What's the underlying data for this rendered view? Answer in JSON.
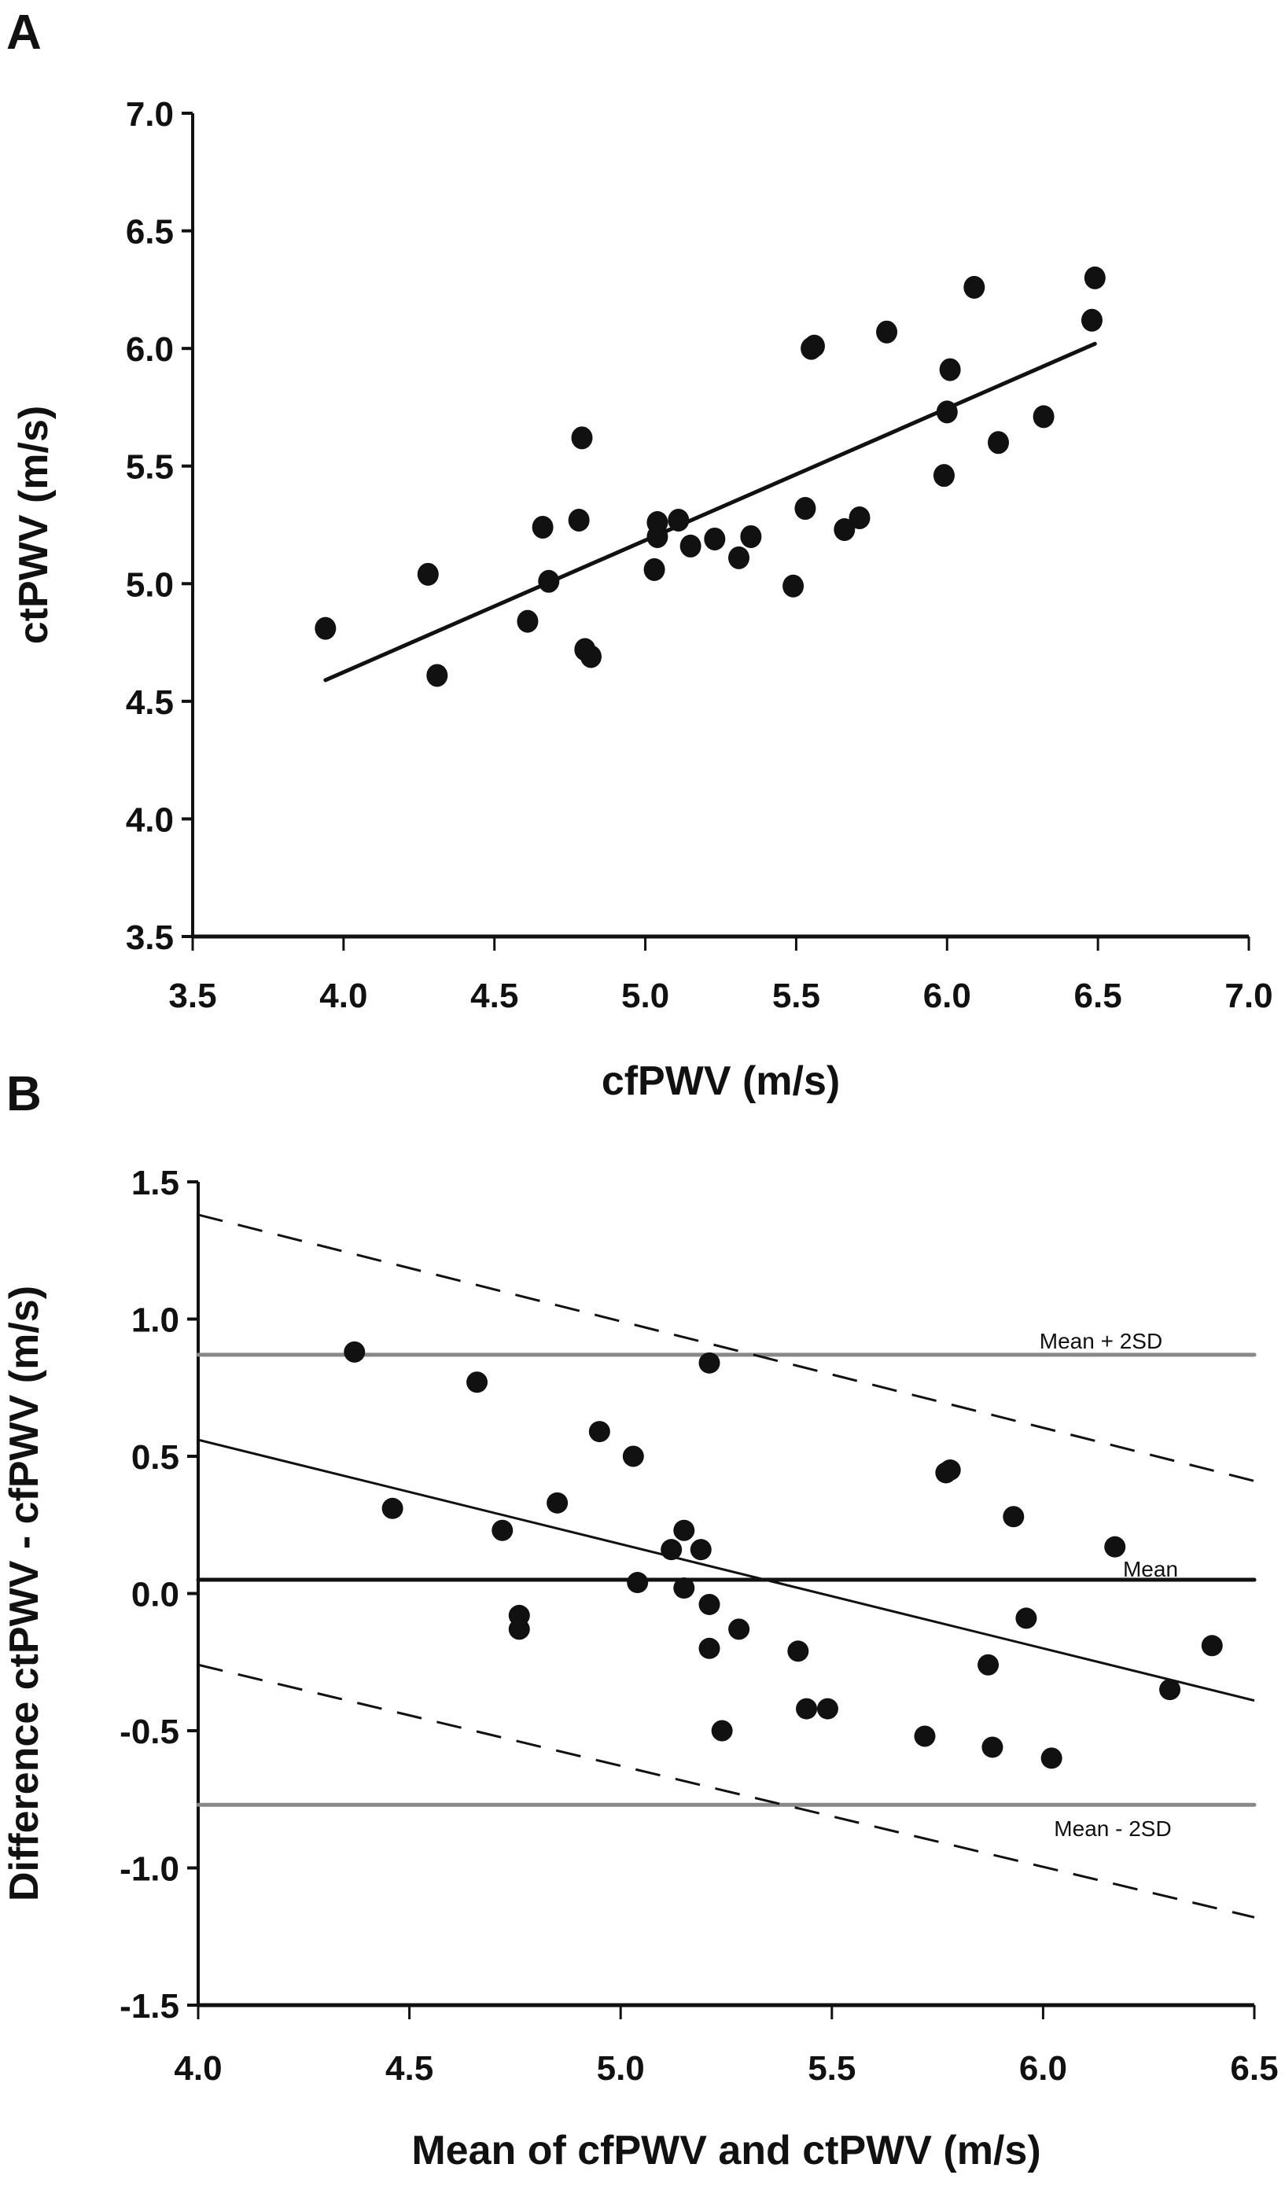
{
  "chart_data": [
    {
      "panel": "A",
      "type": "scatter",
      "title": "",
      "xlabel": "cfPWV (m/s)",
      "ylabel": "ctPWV (m/s)",
      "xlim": [
        3.5,
        7.0
      ],
      "ylim": [
        3.5,
        7.0
      ],
      "xticks": [
        "3.5",
        "4.0",
        "4.5",
        "5.0",
        "5.5",
        "6.0",
        "6.5",
        "7.0"
      ],
      "yticks": [
        "3.5",
        "4.0",
        "4.5",
        "5.0",
        "5.5",
        "6.0",
        "6.5",
        "7.0"
      ],
      "grid": false,
      "points": [
        [
          3.94,
          4.81
        ],
        [
          4.28,
          5.04
        ],
        [
          4.31,
          4.61
        ],
        [
          4.61,
          4.84
        ],
        [
          4.66,
          5.24
        ],
        [
          4.68,
          5.01
        ],
        [
          4.78,
          5.27
        ],
        [
          4.79,
          5.62
        ],
        [
          4.8,
          4.72
        ],
        [
          4.82,
          4.69
        ],
        [
          5.03,
          5.06
        ],
        [
          5.04,
          5.26
        ],
        [
          5.04,
          5.2
        ],
        [
          5.11,
          5.27
        ],
        [
          5.15,
          5.16
        ],
        [
          5.23,
          5.19
        ],
        [
          5.31,
          5.11
        ],
        [
          5.35,
          5.2
        ],
        [
          5.49,
          4.99
        ],
        [
          5.53,
          5.32
        ],
        [
          5.55,
          6.0
        ],
        [
          5.56,
          6.01
        ],
        [
          5.66,
          5.23
        ],
        [
          5.71,
          5.28
        ],
        [
          5.8,
          6.07
        ],
        [
          5.99,
          5.46
        ],
        [
          6.0,
          5.73
        ],
        [
          6.01,
          5.91
        ],
        [
          6.09,
          6.26
        ],
        [
          6.17,
          5.6
        ],
        [
          6.32,
          5.71
        ],
        [
          6.48,
          6.12
        ],
        [
          6.49,
          6.3
        ]
      ],
      "regression_line": {
        "x": [
          3.94,
          6.49
        ],
        "y": [
          4.59,
          6.02
        ]
      }
    },
    {
      "panel": "B",
      "type": "scatter",
      "title": "",
      "xlabel": "Mean of cfPWV and ctPWV (m/s)",
      "ylabel": "Difference ctPWV - cfPWV (m/s)",
      "xlim": [
        4.0,
        6.5
      ],
      "ylim": [
        -1.5,
        1.5
      ],
      "xticks": [
        "4.0",
        "4.5",
        "5.0",
        "5.5",
        "6.0",
        "6.5"
      ],
      "yticks": [
        "-1.5",
        "-1.0",
        "-0.5",
        "0.0",
        "0.5",
        "1.0",
        "1.5"
      ],
      "grid": false,
      "points": [
        [
          4.37,
          0.88
        ],
        [
          4.46,
          0.31
        ],
        [
          4.66,
          0.77
        ],
        [
          4.72,
          0.23
        ],
        [
          4.76,
          -0.08
        ],
        [
          4.76,
          -0.13
        ],
        [
          4.85,
          0.33
        ],
        [
          4.95,
          0.59
        ],
        [
          5.03,
          0.5
        ],
        [
          5.04,
          0.04
        ],
        [
          5.12,
          0.16
        ],
        [
          5.15,
          0.23
        ],
        [
          5.15,
          0.02
        ],
        [
          5.19,
          0.16
        ],
        [
          5.21,
          0.84
        ],
        [
          5.21,
          -0.04
        ],
        [
          5.21,
          -0.2
        ],
        [
          5.24,
          -0.5
        ],
        [
          5.28,
          -0.13
        ],
        [
          5.42,
          -0.21
        ],
        [
          5.44,
          -0.42
        ],
        [
          5.49,
          -0.42
        ],
        [
          5.72,
          -0.52
        ],
        [
          5.77,
          0.44
        ],
        [
          5.78,
          0.45
        ],
        [
          5.87,
          -0.26
        ],
        [
          5.88,
          -0.56
        ],
        [
          5.93,
          0.28
        ],
        [
          5.96,
          -0.09
        ],
        [
          6.02,
          -0.6
        ],
        [
          6.17,
          0.17
        ],
        [
          6.3,
          -0.35
        ],
        [
          6.4,
          -0.19
        ]
      ],
      "reference_lines": [
        {
          "name": "Mean + 2SD",
          "label": "Mean + 2SD",
          "y": 0.87,
          "color": "#888888",
          "style": "solid"
        },
        {
          "name": "Mean",
          "label": "Mean",
          "y": 0.05,
          "color": "#111111",
          "style": "solid"
        },
        {
          "name": "Mean - 2SD",
          "label": "Mean - 2SD",
          "y": -0.77,
          "color": "#888888",
          "style": "solid"
        }
      ],
      "regression_line": {
        "x": [
          4.0,
          6.5
        ],
        "y": [
          0.56,
          -0.39
        ]
      },
      "upper_limit_line": {
        "x": [
          4.0,
          6.5
        ],
        "y": [
          1.38,
          0.41
        ],
        "style": "dashed"
      },
      "lower_limit_line": {
        "x": [
          4.0,
          6.5
        ],
        "y": [
          -0.26,
          -1.18
        ],
        "style": "dashed"
      }
    }
  ],
  "panel_labels": {
    "a": "A",
    "b": "B"
  }
}
